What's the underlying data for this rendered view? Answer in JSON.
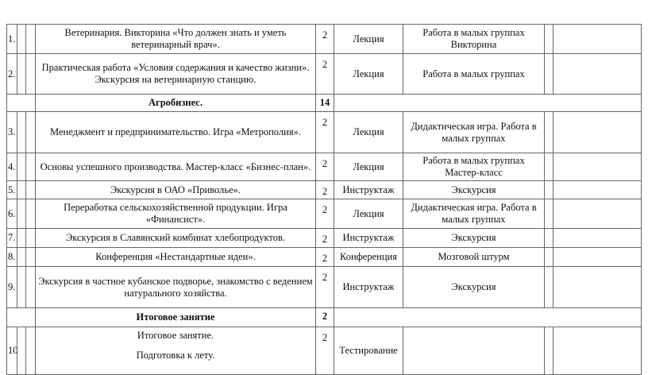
{
  "rows": [
    {
      "type": "lesson",
      "num": "1.",
      "topic": "Ветеринария. Викторина «Что должен знать и уметь ветеринарный врач».",
      "hours": "2",
      "form": "Лекция",
      "method": "Работа в малых группах Викторина"
    },
    {
      "type": "lesson",
      "num": "2.",
      "topic": "Практическая работа «Условия содержания и качество жизни». Экскурсия на ветеринарную станцию.",
      "hours": "2",
      "form": "Лекция",
      "method": "Работа в малых группах"
    },
    {
      "type": "section",
      "title": "Агробизнес.",
      "hours": "14"
    },
    {
      "type": "lesson",
      "num": "3.",
      "topic": "Менеджмент и предпринимательство. Игра  «Метрополия».",
      "hours": "2",
      "form": "Лекция",
      "method": "Дидактическая игра. Работа в малых группах"
    },
    {
      "type": "lesson",
      "num": "4.",
      "topic": "Основы успешного производства. Мастер-класс «Бизнес-план».",
      "hours": "2",
      "form": "Лекция",
      "method": "Работа в малых группах Мастер-класс"
    },
    {
      "type": "lesson",
      "num": "5.",
      "topic": "Экскурсия в ОАО «Привольe».",
      "hours": "2",
      "form": "Инструктаж",
      "method": "Экскурсия"
    },
    {
      "type": "lesson",
      "num": "6.",
      "topic": "Переработка сельскохозяйственной продукции.  Игра «Финансист».",
      "hours": "2",
      "form": "Лекция",
      "method": "Дидактическая игра. Работа в малых группах"
    },
    {
      "type": "lesson",
      "num": "7.",
      "topic": "Экскурсия  в Славянский комбинат хлебопродуктов.",
      "hours": "2",
      "form": "Инструктаж",
      "method": "Экскурсия"
    },
    {
      "type": "lesson",
      "num": "8.",
      "topic": "Конференция «Нестандартные идеи».",
      "hours": "2",
      "form": "Конференция",
      "method": "Мозговой штурм"
    },
    {
      "type": "lesson",
      "num": "9.",
      "topic": "Экскурсия в частное кубанское подворье, знакомство с ведением натурального хозяйства.",
      "hours": "2",
      "form": "Инструктаж",
      "method": "Экскурсия"
    },
    {
      "type": "section",
      "title": "Итоговое занятие",
      "hours": "2"
    },
    {
      "type": "final",
      "num": "10",
      "topic_line1": "Итоговое занятие.",
      "topic_line2": "Подготовка к лету.",
      "hours": "2",
      "form": "Тестирование",
      "method": ""
    }
  ]
}
